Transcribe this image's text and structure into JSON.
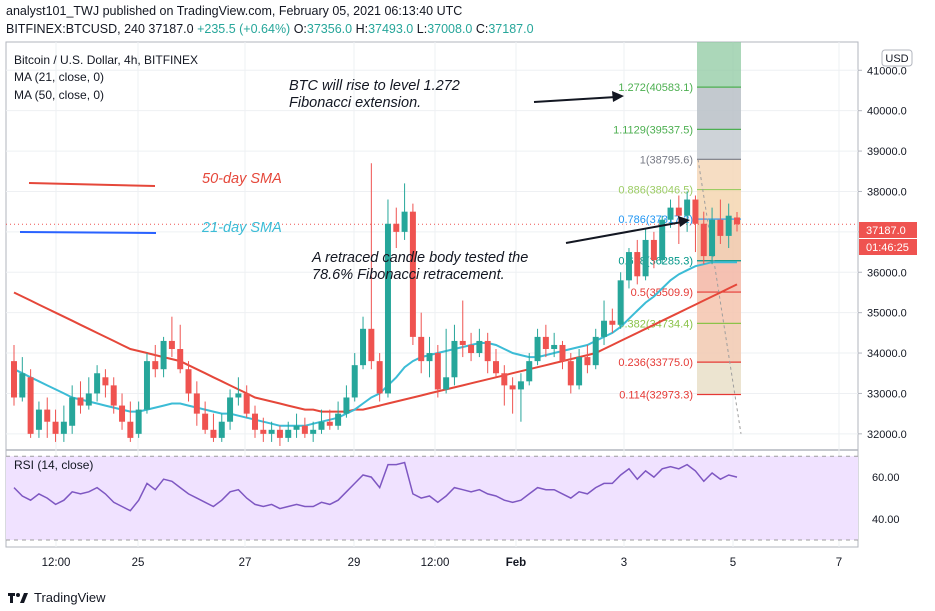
{
  "header": {
    "line1": "analyst101_TWJ published on TradingView.com, February 05, 2021 06:13:40 UTC",
    "line2_symbol": "BITFINEX:BTCUSD, 240",
    "line2_price": "37187.0",
    "line2_change": "+235.5 (+0.64%)",
    "o_label": "O:",
    "o_value": "37356.0",
    "h_label": "H:",
    "h_value": "37493.0",
    "l_label": "L:",
    "l_value": "37008.0",
    "c_label": "C:",
    "c_value": "37187.0"
  },
  "legend": {
    "title": "Bitcoin / U.S. Dollar, 4h, BITFINEX",
    "ma21": "MA (21, close, 0)",
    "ma50": "MA (50, close, 0)",
    "rsi": "RSI (14, close)"
  },
  "annotations": {
    "target_line1": "BTC will rise to level 1.272",
    "target_line2": "Fibonacci extension.",
    "retrace_line1": "A retraced candle body tested the",
    "retrace_line2": "78.6% Fibonacci retracement.",
    "sma50_label": "50-day SMA",
    "sma21_label": "21-day SMA"
  },
  "price_axis": {
    "currency": "USD",
    "ticks": [
      "41000.0",
      "40000.0",
      "39000.0",
      "38000.0",
      "37000.0",
      "36000.0",
      "35000.0",
      "34000.0",
      "33000.0",
      "32000.0"
    ],
    "last_price": "37187.0",
    "countdown": "01:46:25"
  },
  "rsi_axis": {
    "ticks": [
      "60.00",
      "40.00"
    ]
  },
  "time_axis": {
    "ticks": [
      "12:00",
      "25",
      "27",
      "29",
      "12:00",
      "Feb",
      "3",
      "5",
      "7"
    ]
  },
  "fib_levels": [
    {
      "label": "1.272(40583.1)",
      "color": "#4caf50"
    },
    {
      "label": "1.1129(39537.5)",
      "color": "#4caf50"
    },
    {
      "label": "1(38795.6)",
      "color": "#787b86"
    },
    {
      "label": "0.886(38046.5)",
      "color": "#9ccc65"
    },
    {
      "label": "0.786(37317.2)",
      "color": "#2196f3"
    },
    {
      "label": "0.618(36285.3)",
      "color": "#009688"
    },
    {
      "label": "0.5(35509.9)",
      "color": "#e53935"
    },
    {
      "label": "0.382(34734.4)",
      "color": "#8bc34a"
    },
    {
      "label": "0.236(33775.0)",
      "color": "#e53935"
    },
    {
      "label": "0.114(32973.3)",
      "color": "#e53935"
    }
  ],
  "colors": {
    "up": "#26a69a",
    "down": "#ef5350",
    "ma21": "#3cbcd6",
    "ma50": "#e5473a",
    "rsi_line": "#7e57c2",
    "rsi_band": "#f0e2ff",
    "target_zone": "#8fc9a2"
  },
  "footer": {
    "brand": "TradingView"
  },
  "chart_data": {
    "type": "candlestick",
    "title": "Bitcoin / U.S. Dollar, 4h, BITFINEX",
    "y_axis": {
      "label": "USD",
      "range": [
        31600,
        41700
      ]
    },
    "x_tick_labels": [
      "12:00",
      "25",
      "27",
      "29",
      "12:00",
      "Feb",
      "3",
      "5",
      "7"
    ],
    "candles": [
      {
        "o": 33800,
        "c": 32900,
        "h": 34200,
        "l": 32700
      },
      {
        "o": 32900,
        "c": 33500,
        "h": 33900,
        "l": 32800
      },
      {
        "o": 33400,
        "c": 32000,
        "h": 33600,
        "l": 31900
      },
      {
        "o": 32100,
        "c": 32600,
        "h": 32800,
        "l": 31900
      },
      {
        "o": 32600,
        "c": 32300,
        "h": 32900,
        "l": 31900
      },
      {
        "o": 32300,
        "c": 32000,
        "h": 32600,
        "l": 31800
      },
      {
        "o": 32000,
        "c": 32300,
        "h": 32700,
        "l": 31800
      },
      {
        "o": 32200,
        "c": 32900,
        "h": 33200,
        "l": 32000
      },
      {
        "o": 32900,
        "c": 32700,
        "h": 33300,
        "l": 32500
      },
      {
        "o": 32700,
        "c": 33000,
        "h": 33400,
        "l": 32600
      },
      {
        "o": 33000,
        "c": 33500,
        "h": 33700,
        "l": 32800
      },
      {
        "o": 33400,
        "c": 33200,
        "h": 33600,
        "l": 32900
      },
      {
        "o": 33200,
        "c": 32700,
        "h": 33400,
        "l": 32500
      },
      {
        "o": 32700,
        "c": 32300,
        "h": 33000,
        "l": 32100
      },
      {
        "o": 32300,
        "c": 31900,
        "h": 32800,
        "l": 31800
      },
      {
        "o": 32000,
        "c": 32600,
        "h": 32800,
        "l": 31900
      },
      {
        "o": 32600,
        "c": 33800,
        "h": 34000,
        "l": 32500
      },
      {
        "o": 33800,
        "c": 33600,
        "h": 34200,
        "l": 33400
      },
      {
        "o": 33600,
        "c": 34300,
        "h": 34400,
        "l": 33400
      },
      {
        "o": 34300,
        "c": 34100,
        "h": 34900,
        "l": 33900
      },
      {
        "o": 34100,
        "c": 33600,
        "h": 34700,
        "l": 33500
      },
      {
        "o": 33600,
        "c": 33000,
        "h": 33800,
        "l": 32800
      },
      {
        "o": 33000,
        "c": 32500,
        "h": 33300,
        "l": 32200
      },
      {
        "o": 32500,
        "c": 32100,
        "h": 32800,
        "l": 32000
      },
      {
        "o": 32100,
        "c": 31900,
        "h": 32500,
        "l": 31800
      },
      {
        "o": 31900,
        "c": 32300,
        "h": 32500,
        "l": 31800
      },
      {
        "o": 32300,
        "c": 32900,
        "h": 33100,
        "l": 32100
      },
      {
        "o": 32900,
        "c": 33000,
        "h": 33400,
        "l": 32700
      },
      {
        "o": 33000,
        "c": 32500,
        "h": 33200,
        "l": 32400
      },
      {
        "o": 32500,
        "c": 32100,
        "h": 32700,
        "l": 31900
      },
      {
        "o": 32100,
        "c": 32000,
        "h": 32400,
        "l": 31800
      },
      {
        "o": 32000,
        "c": 32100,
        "h": 32300,
        "l": 31800
      },
      {
        "o": 32100,
        "c": 31900,
        "h": 32200,
        "l": 31700
      },
      {
        "o": 31900,
        "c": 32100,
        "h": 32300,
        "l": 31800
      },
      {
        "o": 32100,
        "c": 32200,
        "h": 32500,
        "l": 31900
      },
      {
        "o": 32200,
        "c": 32000,
        "h": 32400,
        "l": 31900
      },
      {
        "o": 32000,
        "c": 32100,
        "h": 32300,
        "l": 31800
      },
      {
        "o": 32100,
        "c": 32300,
        "h": 32600,
        "l": 32000
      },
      {
        "o": 32300,
        "c": 32200,
        "h": 32600,
        "l": 32100
      },
      {
        "o": 32200,
        "c": 32500,
        "h": 32800,
        "l": 32100
      },
      {
        "o": 32500,
        "c": 32900,
        "h": 33200,
        "l": 32400
      },
      {
        "o": 32900,
        "c": 33700,
        "h": 34000,
        "l": 32800
      },
      {
        "o": 33700,
        "c": 34600,
        "h": 34900,
        "l": 33600
      },
      {
        "o": 34600,
        "c": 33800,
        "h": 38700,
        "l": 33600
      },
      {
        "o": 33800,
        "c": 33000,
        "h": 34000,
        "l": 32800
      },
      {
        "o": 33000,
        "c": 37200,
        "h": 37800,
        "l": 32900
      },
      {
        "o": 37200,
        "c": 37000,
        "h": 37600,
        "l": 36600
      },
      {
        "o": 37000,
        "c": 37500,
        "h": 38200,
        "l": 36800
      },
      {
        "o": 37500,
        "c": 34400,
        "h": 37700,
        "l": 34200
      },
      {
        "o": 34400,
        "c": 33800,
        "h": 35000,
        "l": 33500
      },
      {
        "o": 33800,
        "c": 34000,
        "h": 34400,
        "l": 33400
      },
      {
        "o": 34000,
        "c": 33100,
        "h": 34200,
        "l": 32900
      },
      {
        "o": 33100,
        "c": 33400,
        "h": 34600,
        "l": 33000
      },
      {
        "o": 33400,
        "c": 34300,
        "h": 34700,
        "l": 33200
      },
      {
        "o": 34300,
        "c": 34200,
        "h": 35300,
        "l": 33900
      },
      {
        "o": 34200,
        "c": 34000,
        "h": 34500,
        "l": 33800
      },
      {
        "o": 34000,
        "c": 34300,
        "h": 34600,
        "l": 33900
      },
      {
        "o": 34300,
        "c": 33800,
        "h": 34500,
        "l": 33500
      },
      {
        "o": 33800,
        "c": 33500,
        "h": 34100,
        "l": 33400
      },
      {
        "o": 33500,
        "c": 33200,
        "h": 33700,
        "l": 32700
      },
      {
        "o": 33200,
        "c": 33100,
        "h": 33400,
        "l": 32500
      },
      {
        "o": 33100,
        "c": 33300,
        "h": 33500,
        "l": 32300
      },
      {
        "o": 33300,
        "c": 33800,
        "h": 34000,
        "l": 33200
      },
      {
        "o": 33800,
        "c": 34400,
        "h": 34600,
        "l": 33700
      },
      {
        "o": 34400,
        "c": 34100,
        "h": 34700,
        "l": 33900
      },
      {
        "o": 34100,
        "c": 34200,
        "h": 34500,
        "l": 33900
      },
      {
        "o": 34200,
        "c": 33800,
        "h": 34300,
        "l": 33600
      },
      {
        "o": 33800,
        "c": 33200,
        "h": 34000,
        "l": 33000
      },
      {
        "o": 33200,
        "c": 33900,
        "h": 34100,
        "l": 33100
      },
      {
        "o": 33900,
        "c": 33700,
        "h": 34200,
        "l": 33500
      },
      {
        "o": 33700,
        "c": 34400,
        "h": 34600,
        "l": 33600
      },
      {
        "o": 34400,
        "c": 34800,
        "h": 35300,
        "l": 34200
      },
      {
        "o": 34800,
        "c": 34700,
        "h": 35100,
        "l": 34500
      },
      {
        "o": 34700,
        "c": 35800,
        "h": 36000,
        "l": 34600
      },
      {
        "o": 35800,
        "c": 36500,
        "h": 36600,
        "l": 35600
      },
      {
        "o": 36500,
        "c": 35900,
        "h": 36800,
        "l": 35700
      },
      {
        "o": 35900,
        "c": 36800,
        "h": 37100,
        "l": 35800
      },
      {
        "o": 36800,
        "c": 36300,
        "h": 37000,
        "l": 36100
      },
      {
        "o": 36300,
        "c": 37300,
        "h": 37400,
        "l": 36200
      },
      {
        "o": 37300,
        "c": 37600,
        "h": 37800,
        "l": 37100
      },
      {
        "o": 37600,
        "c": 37400,
        "h": 37900,
        "l": 36700
      },
      {
        "o": 37400,
        "c": 37800,
        "h": 38000,
        "l": 37000
      },
      {
        "o": 37800,
        "c": 37200,
        "h": 37900,
        "l": 36500
      },
      {
        "o": 37200,
        "c": 36400,
        "h": 37500,
        "l": 36200
      },
      {
        "o": 36400,
        "c": 37300,
        "h": 37600,
        "l": 36200
      },
      {
        "o": 37300,
        "c": 36900,
        "h": 37800,
        "l": 36700
      },
      {
        "o": 36900,
        "c": 37400,
        "h": 37700,
        "l": 36600
      },
      {
        "o": 37356,
        "c": 37187,
        "h": 37493,
        "l": 37008
      }
    ],
    "ma21": [
      33600,
      33500,
      33400,
      33300,
      33200,
      33100,
      33000,
      32900,
      32850,
      32800,
      32750,
      32700,
      32650,
      32600,
      32550,
      32550,
      32600,
      32650,
      32700,
      32750,
      32750,
      32700,
      32650,
      32600,
      32550,
      32500,
      32500,
      32450,
      32400,
      32350,
      32300,
      32250,
      32200,
      32200,
      32200,
      32200,
      32250,
      32300,
      32350,
      32400,
      32500,
      32600,
      32750,
      32900,
      33000,
      33200,
      33400,
      33650,
      33800,
      33900,
      33950,
      34000,
      34050,
      34100,
      34150,
      34200,
      34250,
      34250,
      34200,
      34100,
      34000,
      33950,
      33900,
      33900,
      33950,
      34000,
      34050,
      34100,
      34150,
      34200,
      34300,
      34400,
      34500,
      34650,
      34850,
      35050,
      35250,
      35400,
      35600,
      35800,
      35950,
      36050,
      36150,
      36200,
      36250,
      36250,
      36250,
      36250
    ],
    "ma50": [
      35500,
      35400,
      35300,
      35200,
      35100,
      35000,
      34900,
      34800,
      34700,
      34600,
      34500,
      34400,
      34300,
      34200,
      34100,
      34050,
      34000,
      33950,
      33900,
      33850,
      33800,
      33700,
      33600,
      33500,
      33400,
      33300,
      33200,
      33100,
      33000,
      32900,
      32850,
      32800,
      32750,
      32700,
      32650,
      32600,
      32600,
      32550,
      32550,
      32550,
      32550,
      32600,
      32600,
      32650,
      32700,
      32750,
      32800,
      32850,
      32900,
      32950,
      33000,
      33050,
      33100,
      33150,
      33200,
      33250,
      33300,
      33350,
      33400,
      33450,
      33500,
      33550,
      33600,
      33650,
      33700,
      33750,
      33800,
      33850,
      33900,
      33950,
      34000,
      34100,
      34200,
      34300,
      34400,
      34500,
      34600,
      34700,
      34800,
      34900,
      35000,
      35100,
      35200,
      35300,
      35400,
      35500,
      35600,
      35700
    ],
    "rsi": [
      55,
      51,
      49,
      52,
      50,
      47,
      49,
      53,
      52,
      53,
      55,
      52,
      48,
      46,
      44,
      49,
      57,
      54,
      59,
      58,
      55,
      52,
      50,
      48,
      46,
      49,
      53,
      54,
      50,
      47,
      46,
      47,
      45,
      46,
      47,
      46,
      46,
      48,
      47,
      49,
      53,
      57,
      61,
      60,
      55,
      66,
      66,
      67,
      52,
      50,
      51,
      48,
      51,
      55,
      54,
      53,
      54,
      52,
      51,
      49,
      48,
      49,
      52,
      55,
      54,
      54,
      52,
      50,
      53,
      52,
      55,
      57,
      57,
      61,
      64,
      59,
      63,
      60,
      64,
      65,
      64,
      66,
      63,
      58,
      62,
      59,
      61,
      60
    ],
    "rsi_range": [
      30,
      72
    ]
  }
}
